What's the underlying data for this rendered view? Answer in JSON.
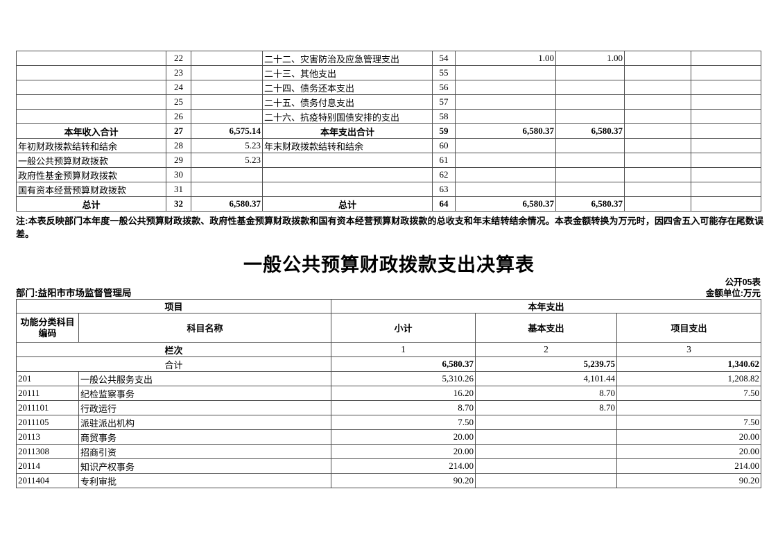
{
  "note": "注:本表反映部门本年度一般公共预算财政拨款、政府性基金预算财政拨款和国有资本经营预算财政拨款的总收支和年末结转结余情况。本表金额转换为万元时，因四舍五入可能存在尾数误差。",
  "title": "一般公共预算财政拨款支出决算表",
  "meta": {
    "form_no": "公开05表",
    "department": "部门:益阳市市场监督管理局",
    "unit": "金额单位:万元"
  },
  "table1": {
    "rows": [
      {
        "l_label": "",
        "l_num": "22",
        "l_amt": "",
        "r_label": "二十二、灾害防治及应急管理支出",
        "r_num": "54",
        "r_total": "1.00",
        "r_general": "1.00",
        "r_govfund": "",
        "r_statecap": ""
      },
      {
        "l_label": "",
        "l_num": "23",
        "l_amt": "",
        "r_label": "二十三、其他支出",
        "r_num": "55",
        "r_total": "",
        "r_general": "",
        "r_govfund": "",
        "r_statecap": ""
      },
      {
        "l_label": "",
        "l_num": "24",
        "l_amt": "",
        "r_label": "二十四、债务还本支出",
        "r_num": "56",
        "r_total": "",
        "r_general": "",
        "r_govfund": "",
        "r_statecap": ""
      },
      {
        "l_label": "",
        "l_num": "25",
        "l_amt": "",
        "r_label": "二十五、债务付息支出",
        "r_num": "57",
        "r_total": "",
        "r_general": "",
        "r_govfund": "",
        "r_statecap": ""
      },
      {
        "l_label": "",
        "l_num": "26",
        "l_amt": "",
        "r_label": "二十六、抗疫特别国债安排的支出",
        "r_num": "58",
        "r_total": "",
        "r_general": "",
        "r_govfund": "",
        "r_statecap": ""
      },
      {
        "l_label": "本年收入合计",
        "l_center": true,
        "l_num": "27",
        "l_amt": "6,575.14",
        "r_label": "本年支出合计",
        "r_center": true,
        "r_num": "59",
        "r_total": "6,580.37",
        "r_general": "6,580.37",
        "r_govfund": "",
        "r_statecap": "",
        "total": true
      },
      {
        "l_label": "年初财政拨款结转和结余",
        "l_num": "28",
        "l_amt": "5.23",
        "r_label": "年末财政拨款结转和结余",
        "r_num": "60",
        "r_total": "",
        "r_general": "",
        "r_govfund": "",
        "r_statecap": ""
      },
      {
        "l_label": "一般公共预算财政拨款",
        "l_num": "29",
        "l_amt": "5.23",
        "r_label": "",
        "r_num": "61",
        "r_total": "",
        "r_general": "",
        "r_govfund": "",
        "r_statecap": ""
      },
      {
        "l_label": "政府性基金预算财政拨款",
        "l_num": "30",
        "l_amt": "",
        "r_label": "",
        "r_num": "62",
        "r_total": "",
        "r_general": "",
        "r_govfund": "",
        "r_statecap": ""
      },
      {
        "l_label": "国有资本经营预算财政拨款",
        "l_num": "31",
        "l_amt": "",
        "r_label": "",
        "r_num": "63",
        "r_total": "",
        "r_general": "",
        "r_govfund": "",
        "r_statecap": ""
      },
      {
        "l_label": "总计",
        "l_center": true,
        "l_num": "32",
        "l_amt": "6,580.37",
        "r_label": "总计",
        "r_center": true,
        "r_num": "64",
        "r_total": "6,580.37",
        "r_general": "6,580.37",
        "r_govfund": "",
        "r_statecap": "",
        "total": true
      }
    ]
  },
  "table2": {
    "header": {
      "project_group": "项目",
      "year_expense_group": "本年支出",
      "code": "功能分类科目编码",
      "subject": "科目名称",
      "subtotal": "小计",
      "basic": "基本支出",
      "project": "项目支出",
      "lanci": "栏次",
      "col1": "1",
      "col2": "2",
      "col3": "3"
    },
    "rows": [
      {
        "span_label": true,
        "name": "合计",
        "subtotal": "6,580.37",
        "basic": "5,239.75",
        "project": "1,340.62",
        "total": true
      },
      {
        "code": "201",
        "name": "一般公共服务支出",
        "subtotal": "5,310.26",
        "basic": "4,101.44",
        "project": "1,208.82"
      },
      {
        "code": "20111",
        "name": "纪检监察事务",
        "subtotal": "16.20",
        "basic": "8.70",
        "project": "7.50"
      },
      {
        "code": "2011101",
        "name": "行政运行",
        "subtotal": "8.70",
        "basic": "8.70",
        "project": ""
      },
      {
        "code": "2011105",
        "name": "派驻派出机构",
        "subtotal": "7.50",
        "basic": "",
        "project": "7.50"
      },
      {
        "code": "20113",
        "name": "商贸事务",
        "subtotal": "20.00",
        "basic": "",
        "project": "20.00"
      },
      {
        "code": "2011308",
        "name": "招商引资",
        "subtotal": "20.00",
        "basic": "",
        "project": "20.00"
      },
      {
        "code": "20114",
        "name": "知识产权事务",
        "subtotal": "214.00",
        "basic": "",
        "project": "214.00"
      },
      {
        "code": "2011404",
        "name": "专利审批",
        "subtotal": "90.20",
        "basic": "",
        "project": "90.20"
      }
    ]
  }
}
